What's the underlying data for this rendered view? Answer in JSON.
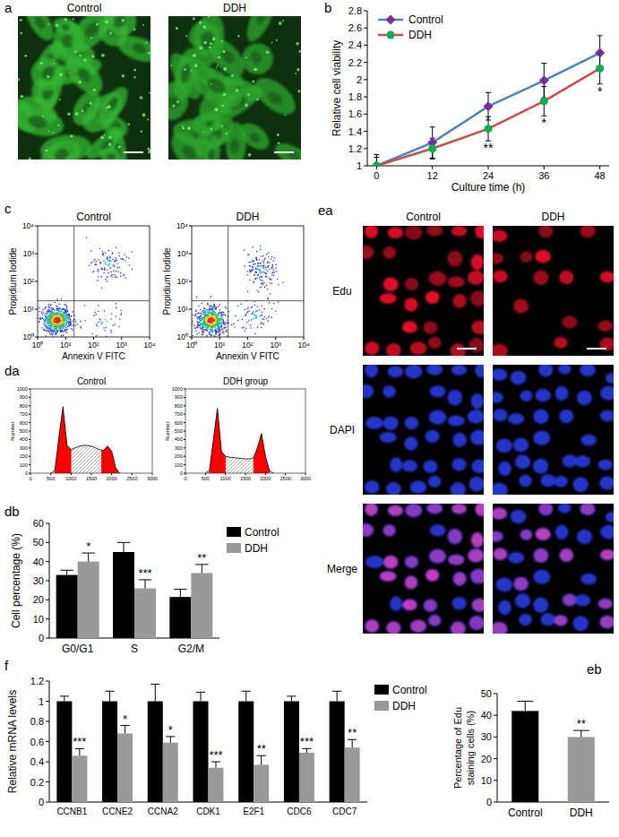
{
  "panel_labels": [
    "a",
    "b",
    "c",
    "da",
    "db",
    "ea",
    "eb",
    "f"
  ],
  "images": {
    "a": {
      "titles": [
        "Control",
        "DDH"
      ]
    },
    "ea": {
      "columns": [
        "Control",
        "DDH"
      ],
      "rows": [
        "Edu",
        "DAPI",
        "Merge"
      ]
    }
  },
  "chart_data": [
    {
      "type": "line",
      "x_label": "Culture time (h)",
      "y_label": "Relative cell viability",
      "x": [
        0,
        12,
        24,
        36,
        48
      ],
      "xlim": [
        -2,
        50
      ],
      "xticks": [
        0,
        12,
        24,
        36,
        48
      ],
      "ylim": [
        1,
        2.8
      ],
      "yticks": [
        1,
        1.2,
        1.4,
        1.6,
        1.8,
        2,
        2.2,
        2.4,
        2.6,
        2.8
      ],
      "series": [
        {
          "name": "Control",
          "color": "#4f81bd",
          "marker": "diamond",
          "values": [
            1,
            1.27,
            1.69,
            1.99,
            2.31
          ],
          "errors": [
            0.13,
            0.18,
            0.16,
            0.2,
            0.2
          ]
        },
        {
          "name": "DDH",
          "color": "#c0504d",
          "marker": "circle",
          "values": [
            1,
            1.2,
            1.43,
            1.75,
            2.13
          ],
          "errors": [
            0.1,
            0.12,
            0.14,
            0.17,
            0.18
          ]
        }
      ],
      "annotations": [
        null,
        null,
        "**",
        "*",
        "*"
      ],
      "legend": "upper left"
    },
    {
      "type": "scatter",
      "title": "Control",
      "x_label": "Annexin V FITC",
      "y_label": "Propidium Iodide",
      "log": true,
      "xlim": [
        1,
        10000
      ],
      "ylim": [
        1,
        10000
      ],
      "xticks": [
        {
          "value": 1,
          "label": "10⁰"
        },
        {
          "value": 10,
          "label": "10¹"
        },
        {
          "value": 100,
          "label": "10²"
        },
        {
          "value": 1000,
          "label": "10³"
        },
        {
          "value": 10000,
          "label": "10⁴"
        }
      ],
      "yticks": [
        {
          "value": 1,
          "label": "10⁰"
        },
        {
          "value": 10,
          "label": "10¹"
        },
        {
          "value": 100,
          "label": "10²"
        },
        {
          "value": 1000,
          "label": "10³"
        },
        {
          "value": 10000,
          "label": "10⁴"
        }
      ],
      "quadrant_x": 20,
      "quadrant_y": 20,
      "populations": {
        "x": [
          5,
          350,
          250
        ],
        "y": [
          4,
          450,
          4
        ],
        "events": [
          700,
          110,
          40
        ]
      }
    },
    {
      "type": "scatter",
      "title": "DDH",
      "x_label": "Annexin V FITC",
      "y_label": "Propidium Iodide",
      "log": true,
      "xlim": [
        1,
        10000
      ],
      "ylim": [
        1,
        10000
      ],
      "xticks": [
        {
          "value": 1,
          "label": "10⁰"
        },
        {
          "value": 10,
          "label": "10¹"
        },
        {
          "value": 100,
          "label": "10²"
        },
        {
          "value": 1000,
          "label": "10³"
        },
        {
          "value": 10000,
          "label": "10⁴"
        }
      ],
      "yticks": [
        {
          "value": 1,
          "label": "10⁰"
        },
        {
          "value": 10,
          "label": "10¹"
        },
        {
          "value": 100,
          "label": "10²"
        },
        {
          "value": 1000,
          "label": "10³"
        },
        {
          "value": 10000,
          "label": "10⁴"
        }
      ],
      "quadrant_x": 20,
      "quadrant_y": 20,
      "populations": {
        "x": [
          5,
          300,
          200
        ],
        "y": [
          4,
          250,
          5
        ],
        "events": [
          650,
          160,
          70
        ]
      }
    },
    {
      "type": "area",
      "title": "Control",
      "y_label": "Number",
      "color": "#ff0000",
      "x": [
        500,
        600,
        700,
        800,
        900,
        1000,
        1100,
        1200,
        1300,
        1400,
        1500,
        1600,
        1700,
        1800,
        1900,
        2000,
        2100,
        2200
      ],
      "values": [
        0,
        30,
        420,
        790,
        330,
        280,
        300,
        320,
        330,
        330,
        320,
        300,
        280,
        270,
        320,
        260,
        60,
        0
      ],
      "peak_ranges": [
        [
          600,
          1000
        ],
        [
          1750,
          2150
        ]
      ],
      "xlim": [
        0,
        3000
      ],
      "xticks": [
        0,
        500,
        1000,
        1500,
        2000,
        2500,
        3000
      ],
      "ylim": [
        0,
        1000
      ],
      "yticks": [
        0,
        100,
        200,
        300,
        400,
        500,
        600,
        700,
        800,
        900,
        1000
      ]
    },
    {
      "type": "area",
      "title": "DDH group",
      "y_label": "Number",
      "color": "#ff0000",
      "x": [
        500,
        600,
        700,
        800,
        900,
        1000,
        1100,
        1200,
        1300,
        1400,
        1500,
        1600,
        1700,
        1800,
        1900,
        2000,
        2100,
        2200
      ],
      "values": [
        0,
        30,
        400,
        770,
        260,
        200,
        190,
        185,
        180,
        175,
        170,
        170,
        180,
        300,
        470,
        200,
        30,
        0
      ],
      "peak_ranges": [
        [
          600,
          1000
        ],
        [
          1700,
          2100
        ]
      ],
      "xlim": [
        0,
        3000
      ],
      "xticks": [
        0,
        500,
        1000,
        1500,
        2000,
        2500,
        3000
      ],
      "ylim": [
        0,
        1000
      ],
      "yticks": [
        0,
        100,
        200,
        300,
        400,
        500,
        600,
        700,
        800,
        900,
        1000
      ]
    },
    {
      "type": "bar",
      "y_label": "Cell percentage (%)",
      "categories": [
        "G0/G1",
        "S",
        "G2/M"
      ],
      "series": [
        {
          "name": "Control",
          "color": "#000000",
          "values": [
            33,
            45,
            21.5
          ],
          "errors": [
            2.5,
            5,
            4
          ]
        },
        {
          "name": "DDH",
          "color": "#999999",
          "values": [
            40,
            26,
            34
          ],
          "errors": [
            4.5,
            4.5,
            4.5
          ]
        }
      ],
      "ylim": [
        0,
        60
      ],
      "yticks": [
        0,
        10,
        20,
        30,
        40,
        50,
        60
      ],
      "annotations": [
        "*",
        "***",
        "**"
      ],
      "legend": "upper right"
    },
    {
      "type": "bar",
      "y_label": "Relative mRNA levels",
      "categories": [
        "CCNB1",
        "CCNE2",
        "CCNA2",
        "CDK1",
        "E2F1",
        "CDC6",
        "CDC7"
      ],
      "series": [
        {
          "name": "Control",
          "color": "#000000",
          "values": [
            1,
            1,
            1,
            1,
            1,
            1,
            1
          ],
          "errors": [
            0.05,
            0.1,
            0.17,
            0.09,
            0.1,
            0.05,
            0.1
          ]
        },
        {
          "name": "DDH",
          "color": "#999999",
          "values": [
            0.46,
            0.68,
            0.59,
            0.34,
            0.37,
            0.49,
            0.54
          ],
          "errors": [
            0.07,
            0.08,
            0.06,
            0.06,
            0.09,
            0.04,
            0.08
          ]
        }
      ],
      "ylim": [
        0,
        1.2
      ],
      "yticks": [
        0,
        0.2,
        0.4,
        0.6,
        0.8,
        1,
        1.2
      ],
      "annotations": [
        "***",
        "*",
        "*",
        "***",
        "**",
        "***",
        "**"
      ],
      "legend": "upper right"
    },
    {
      "type": "bar",
      "y_label": "Percentage of Edu\nstaining cells (%)",
      "categories": [
        "Control",
        "DDH"
      ],
      "values": [
        42,
        30
      ],
      "errors": [
        4.5,
        3
      ],
      "colors": [
        "#000000",
        "#999999"
      ],
      "ylim": [
        0,
        50
      ],
      "yticks": [
        0,
        10,
        20,
        30,
        40,
        50
      ],
      "annotations": [
        null,
        "**"
      ]
    }
  ]
}
